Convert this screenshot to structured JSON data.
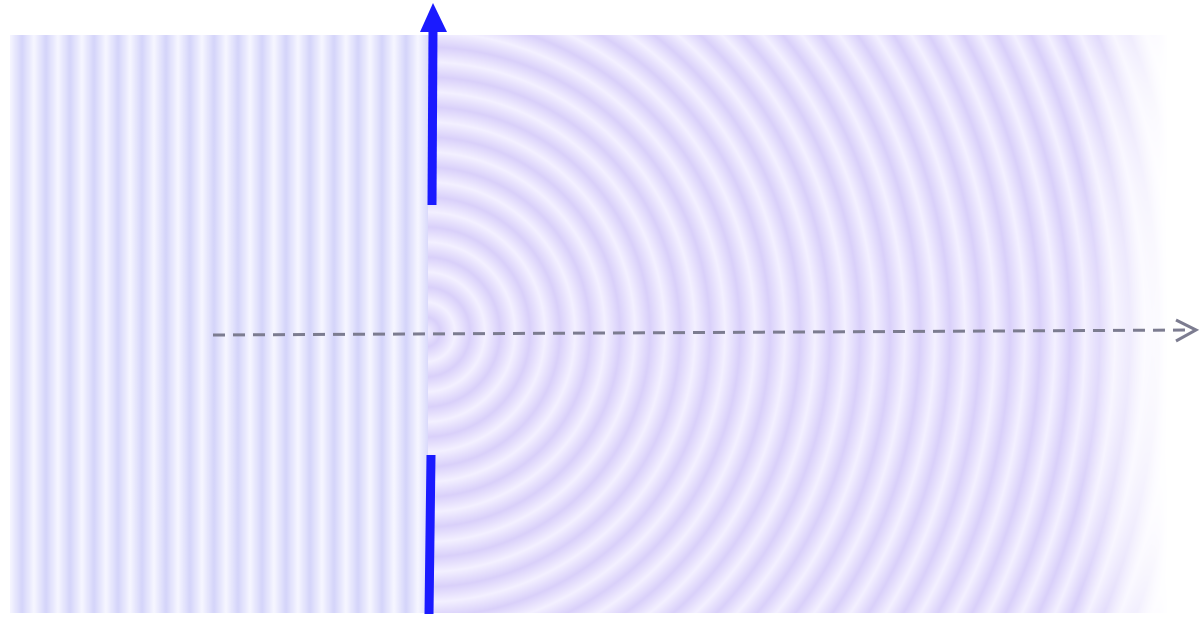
{
  "diagram": {
    "description_type": "single-slit diffraction",
    "colors": {
      "barrier": "#1a1aff",
      "wave_dark": "#d4d4fa",
      "wave_light": "#f6f6ff",
      "diffracted_dark": "#d9d0fa",
      "diffracted_light": "#f3f0ff",
      "axis_arrow": "#7c7c90"
    },
    "icons": {
      "barrier_arrow": "arrow-up-icon",
      "axis_arrow": "arrow-right-icon"
    }
  }
}
